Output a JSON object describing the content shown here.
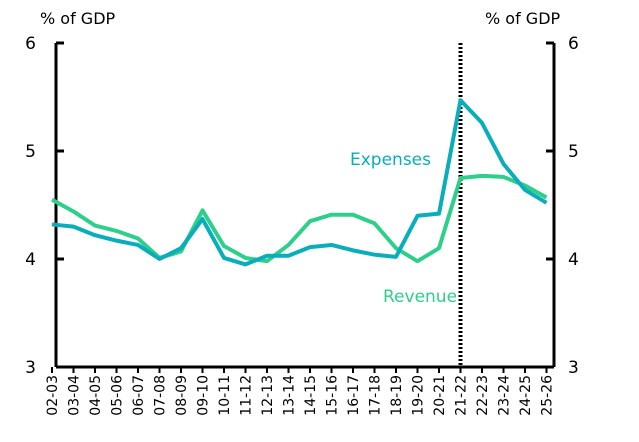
{
  "chart_data": {
    "type": "line",
    "title": "",
    "ylabel_left": "% of GDP",
    "ylabel_right": "% of GDP",
    "ylim": [
      3,
      6
    ],
    "yticks": [
      3,
      4,
      5,
      6
    ],
    "grid": false,
    "categories": [
      "02-03",
      "03-04",
      "04-05",
      "05-06",
      "06-07",
      "07-08",
      "08-09",
      "09-10",
      "10-11",
      "11-12",
      "12-13",
      "13-14",
      "14-15",
      "15-16",
      "16-17",
      "17-18",
      "18-19",
      "19-20",
      "20-21",
      "21-22",
      "22-23",
      "23-24",
      "24-25",
      "25-26"
    ],
    "divider_at": "21-22",
    "series": [
      {
        "name": "Expenses",
        "color": "#0AADBA",
        "values": [
          4.32,
          4.3,
          4.22,
          4.17,
          4.13,
          4.0,
          4.1,
          4.37,
          4.01,
          3.95,
          4.03,
          4.03,
          4.11,
          4.13,
          4.08,
          4.04,
          4.02,
          4.4,
          4.42,
          5.47,
          5.26,
          4.88,
          4.64,
          4.52
        ]
      },
      {
        "name": "Revenue",
        "color": "#2ECF8A",
        "values": [
          4.55,
          4.44,
          4.31,
          4.26,
          4.19,
          4.01,
          4.07,
          4.45,
          4.12,
          4.01,
          3.98,
          4.13,
          4.35,
          4.41,
          4.41,
          4.33,
          4.1,
          3.98,
          4.1,
          4.75,
          4.77,
          4.76,
          4.68,
          4.57
        ]
      }
    ]
  }
}
